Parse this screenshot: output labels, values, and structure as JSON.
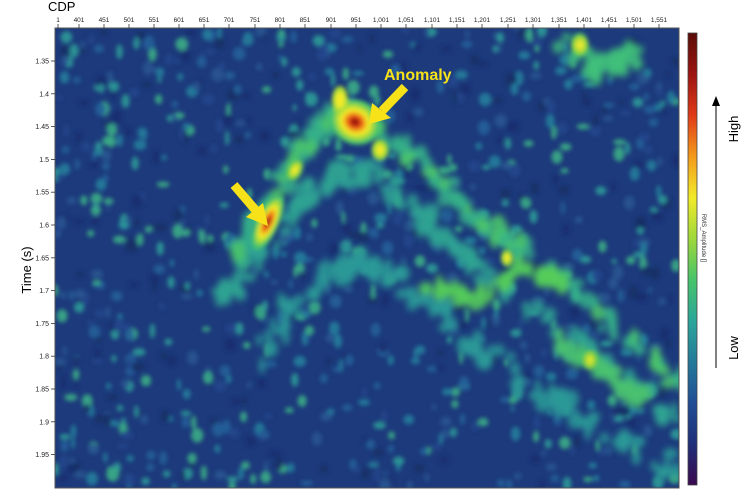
{
  "figure": {
    "top_label": "CDP",
    "y_axis_label": "Time (s)",
    "x_ticks": [
      "1",
      "401",
      "451",
      "501",
      "551",
      "601",
      "651",
      "701",
      "751",
      "801",
      "851",
      "901",
      "951",
      "1,001",
      "1,051",
      "1,101",
      "1,151",
      "1,201",
      "1,251",
      "1,301",
      "1,351",
      "1,401",
      "1,451",
      "1,501",
      "1,551"
    ],
    "y_ticks": [
      "1.35",
      "1.4",
      "1.45",
      "1.5",
      "1.55",
      "1.6",
      "1.65",
      "1.7",
      "1.75",
      "1.8",
      "1.85",
      "1.9",
      "1.95"
    ],
    "annotation": "Anomaly",
    "colorbar": {
      "title": "RMS_Amplitude []",
      "high_label": "High",
      "low_label": "Low",
      "stops": [
        "#3b0a4f",
        "#1f2f7a",
        "#214e96",
        "#237a9a",
        "#2aa69a",
        "#47c46a",
        "#9fd83a",
        "#f2ea2a",
        "#f39a1c",
        "#e03a16",
        "#9c1410",
        "#5a0c08"
      ]
    },
    "colors": {
      "background": "#1d3a7c",
      "arrow": "#f7e21a",
      "annotation_text": "#f7e21a"
    }
  }
}
